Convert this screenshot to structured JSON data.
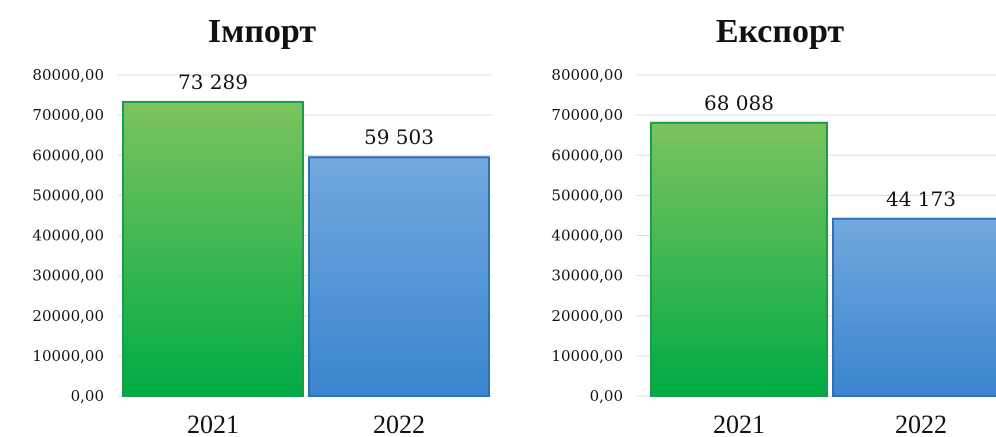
{
  "chart_data": [
    {
      "type": "bar",
      "title": "Імпорт",
      "categories": [
        "2021",
        "2022"
      ],
      "values": [
        73289,
        59503
      ],
      "data_labels": [
        "73 289",
        "59 503"
      ],
      "colors": [
        "#1fb050",
        "#3f88d0"
      ],
      "ylim": [
        0,
        80000
      ],
      "y_ticks": [
        "0,00",
        "10000,00",
        "20000,00",
        "30000,00",
        "40000,00",
        "50000,00",
        "60000,00",
        "70000,00",
        "80000,00"
      ],
      "grid": true,
      "legend": "none"
    },
    {
      "type": "bar",
      "title": "Експорт",
      "categories": [
        "2021",
        "2022"
      ],
      "values": [
        68088,
        44173
      ],
      "data_labels": [
        "68 088",
        "44 173"
      ],
      "colors": [
        "#1fb050",
        "#3f88d0"
      ],
      "ylim": [
        0,
        80000
      ],
      "y_ticks": [
        "0,00",
        "10000,00",
        "20000,00",
        "30000,00",
        "40000,00",
        "50000,00",
        "60000,00",
        "70000,00",
        "80000,00"
      ],
      "grid": true,
      "legend": "none"
    }
  ]
}
